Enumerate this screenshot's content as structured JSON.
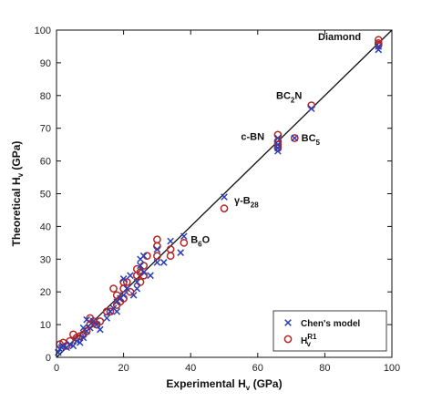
{
  "chart_data": {
    "type": "scatter",
    "xlabel_main": "Experimental H",
    "xlabel_sub": "v",
    "xlabel_unit": " (GPa)",
    "ylabel_main": "Theoretical H",
    "ylabel_sub": "v",
    "ylabel_unit": " (GPa)",
    "xlim": [
      0,
      100
    ],
    "ylim": [
      0,
      100
    ],
    "xticks": [
      0,
      20,
      40,
      60,
      80,
      100
    ],
    "yticks": [
      0,
      10,
      20,
      30,
      40,
      50,
      60,
      70,
      80,
      90,
      100
    ],
    "grid": false,
    "reference_line": {
      "from": [
        0,
        0
      ],
      "to": [
        100,
        100
      ]
    },
    "legend_position": "bottom-right",
    "series": [
      {
        "name": "Chen's model",
        "marker": "x",
        "color": "#2b3fb5",
        "points": [
          [
            0.5,
            1.5
          ],
          [
            1,
            2.5
          ],
          [
            1.5,
            3
          ],
          [
            2,
            3.5
          ],
          [
            3,
            3
          ],
          [
            4,
            4
          ],
          [
            5,
            3.5
          ],
          [
            6,
            5
          ],
          [
            7,
            4.5
          ],
          [
            8,
            6
          ],
          [
            8,
            9
          ],
          [
            9,
            8
          ],
          [
            9,
            11.5
          ],
          [
            10,
            9
          ],
          [
            11,
            11
          ],
          [
            12,
            10
          ],
          [
            13,
            8.5
          ],
          [
            15,
            12
          ],
          [
            16,
            14
          ],
          [
            17,
            15
          ],
          [
            18,
            14
          ],
          [
            18,
            17
          ],
          [
            19,
            18
          ],
          [
            20,
            24
          ],
          [
            20,
            19
          ],
          [
            21,
            21
          ],
          [
            22,
            25
          ],
          [
            23,
            19
          ],
          [
            24,
            23
          ],
          [
            24,
            21
          ],
          [
            25,
            28
          ],
          [
            25,
            30
          ],
          [
            26,
            31
          ],
          [
            26,
            26
          ],
          [
            28,
            25
          ],
          [
            30,
            33
          ],
          [
            30,
            29
          ],
          [
            32,
            29
          ],
          [
            34,
            35.5
          ],
          [
            37,
            32
          ],
          [
            38,
            37
          ],
          [
            50,
            49
          ],
          [
            66,
            67
          ],
          [
            66,
            65
          ],
          [
            66,
            63
          ],
          [
            66,
            64
          ],
          [
            71,
            67
          ],
          [
            76,
            76
          ],
          [
            96,
            95
          ],
          [
            96,
            94
          ]
        ]
      },
      {
        "name": "H",
        "name_sup": "R1",
        "name_sub": "v",
        "marker": "o",
        "color": "#b52525",
        "points": [
          [
            1,
            4
          ],
          [
            2,
            4.5
          ],
          [
            3,
            3.5
          ],
          [
            4,
            5
          ],
          [
            5,
            7
          ],
          [
            6,
            6
          ],
          [
            7,
            6.5
          ],
          [
            8,
            7
          ],
          [
            9,
            8
          ],
          [
            10,
            10
          ],
          [
            10,
            12
          ],
          [
            11,
            11
          ],
          [
            12,
            10
          ],
          [
            13,
            11
          ],
          [
            15,
            14
          ],
          [
            16,
            14
          ],
          [
            17,
            21
          ],
          [
            18,
            16
          ],
          [
            18,
            19
          ],
          [
            19,
            17
          ],
          [
            20,
            18
          ],
          [
            20,
            21
          ],
          [
            20,
            23
          ],
          [
            21,
            23
          ],
          [
            22,
            20
          ],
          [
            24,
            27
          ],
          [
            24,
            25
          ],
          [
            25,
            26
          ],
          [
            25,
            23
          ],
          [
            26,
            28
          ],
          [
            26,
            25
          ],
          [
            27,
            31
          ],
          [
            30,
            34
          ],
          [
            30,
            36
          ],
          [
            30,
            31
          ],
          [
            34,
            33
          ],
          [
            34,
            31
          ],
          [
            38,
            35
          ],
          [
            50,
            45.5
          ],
          [
            66,
            68
          ],
          [
            66,
            66
          ],
          [
            66,
            65
          ],
          [
            66,
            64
          ],
          [
            71,
            67
          ],
          [
            76,
            77
          ],
          [
            96,
            97
          ],
          [
            96,
            96
          ],
          [
            96,
            95.5
          ]
        ]
      }
    ],
    "annotations": [
      {
        "main": "Diamond",
        "sub": "",
        "main2": "",
        "at": [
          78,
          97
        ]
      },
      {
        "main": "BC",
        "sub": "2",
        "main2": "N",
        "at": [
          65.5,
          79
        ]
      },
      {
        "main": "c-BN",
        "sub": "",
        "main2": "",
        "at": [
          55,
          66.5
        ]
      },
      {
        "main": "BC",
        "sub": "5",
        "main2": "",
        "at": [
          73,
          66
        ]
      },
      {
        "main": "γ-B",
        "sub": "28",
        "main2": "",
        "at": [
          53,
          47
        ]
      },
      {
        "main": "B",
        "sub": "6",
        "main2": "O",
        "at": [
          40,
          35
        ]
      }
    ]
  }
}
